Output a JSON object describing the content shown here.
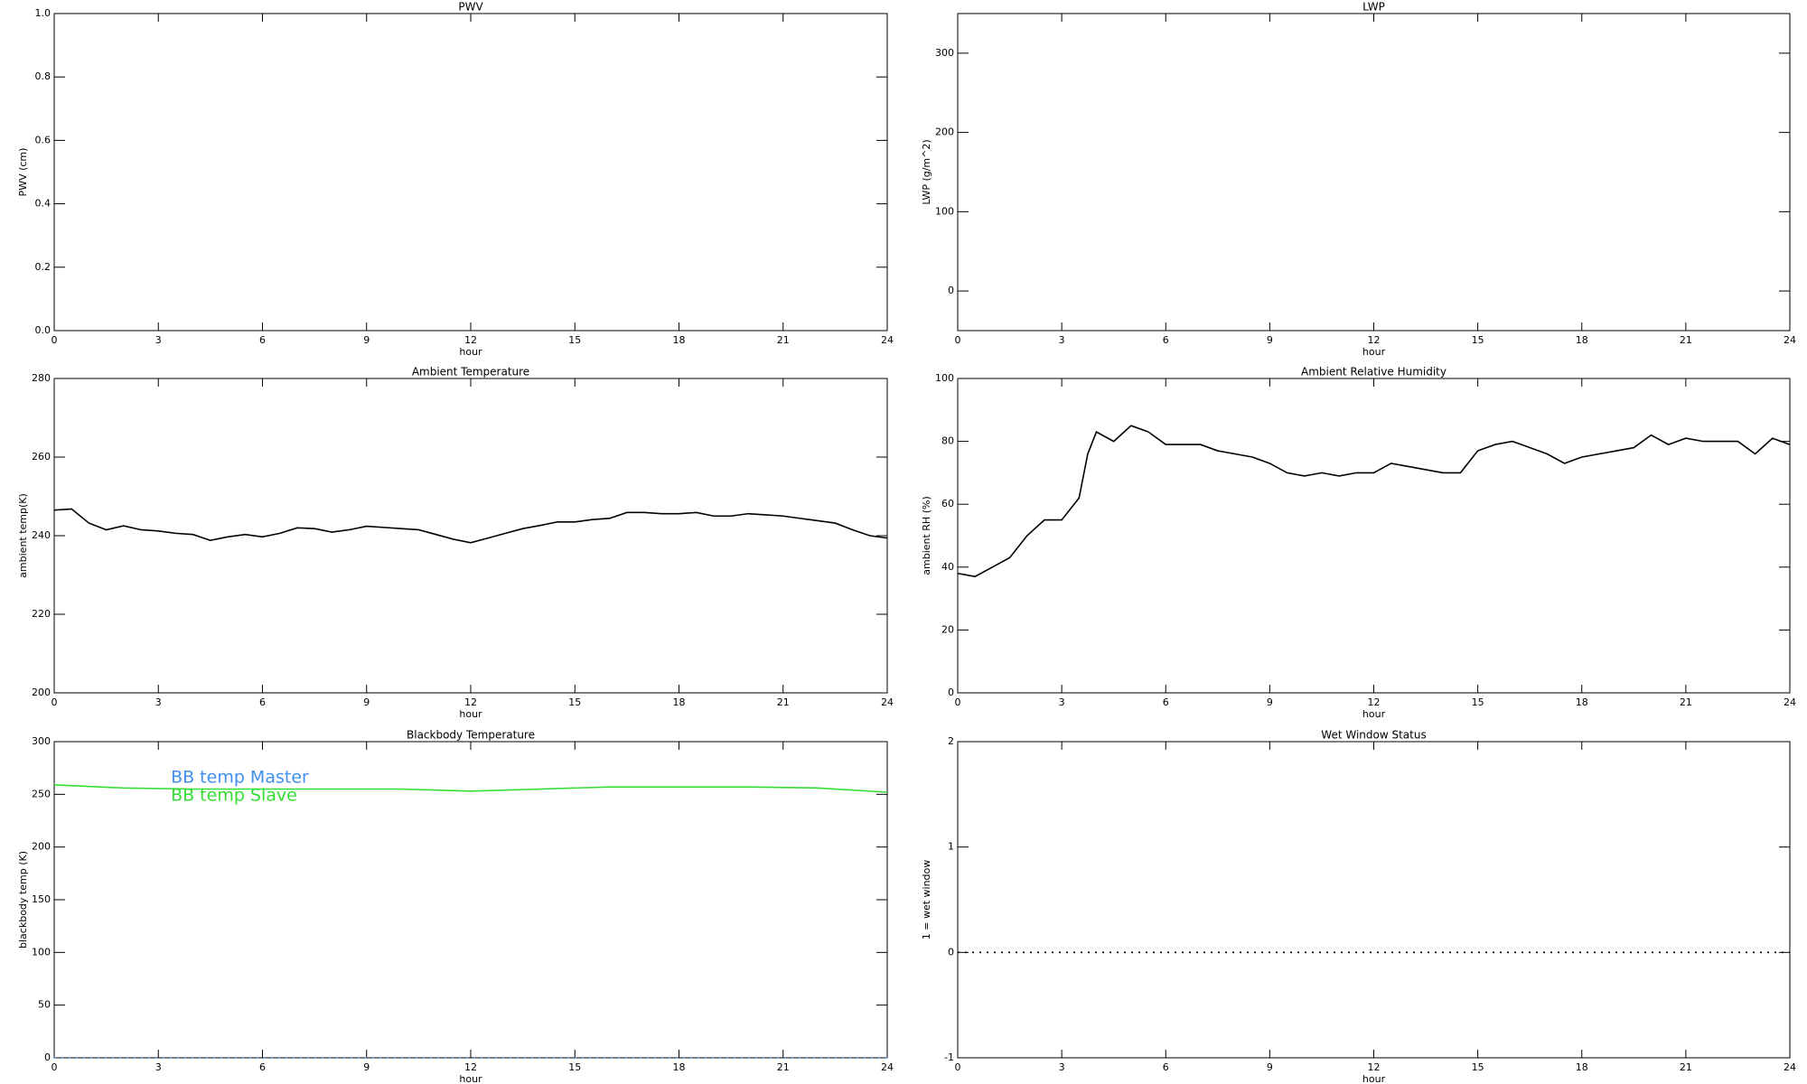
{
  "chart_data": [
    {
      "type": "line",
      "title": "PWV",
      "xlabel": "hour",
      "ylabel": "PWV (cm)",
      "xlim": [
        0,
        24
      ],
      "xticks": [
        0,
        3,
        6,
        9,
        12,
        15,
        18,
        21,
        24
      ],
      "ylim": [
        0,
        1
      ],
      "yticks": [
        {
          "value": 0,
          "label": "0.0"
        },
        0.2,
        0.4,
        0.6,
        0.8,
        {
          "value": 1,
          "label": "1.0"
        }
      ],
      "series": []
    },
    {
      "type": "line",
      "title": "LWP",
      "xlabel": "hour",
      "ylabel": "LWP (g/m^2)",
      "xlim": [
        0,
        24
      ],
      "xticks": [
        0,
        3,
        6,
        9,
        12,
        15,
        18,
        21,
        24
      ],
      "ylim": [
        -50,
        350
      ],
      "yticks": [
        0,
        100,
        200,
        300
      ],
      "series": []
    },
    {
      "type": "line",
      "title": "Ambient Temperature",
      "xlabel": "hour",
      "ylabel": "ambient temp(K)",
      "xlim": [
        0,
        24
      ],
      "xticks": [
        0,
        3,
        6,
        9,
        12,
        15,
        18,
        21,
        24
      ],
      "ylim": [
        200,
        280
      ],
      "yticks": [
        200,
        220,
        240,
        260,
        280
      ],
      "x": [
        0,
        0.5,
        1,
        1.5,
        2,
        2.5,
        3,
        3.5,
        4,
        4.5,
        5,
        5.5,
        6,
        6.5,
        7,
        7.5,
        8,
        8.5,
        9,
        9.5,
        10,
        10.5,
        11,
        11.5,
        12,
        12.5,
        13,
        13.5,
        14,
        14.5,
        15,
        15.5,
        16,
        16.5,
        17,
        17.5,
        18,
        18.5,
        19,
        19.5,
        20,
        20.5,
        21,
        21.5,
        22,
        22.5,
        23,
        23.5,
        24
      ],
      "series": [
        {
          "color": "#000000",
          "values": [
            246.5,
            246.8,
            243.2,
            241.5,
            242.5,
            241.5,
            241.2,
            240.6,
            240.3,
            238.8,
            239.7,
            240.3,
            239.7,
            240.6,
            242,
            241.8,
            240.9,
            241.5,
            242.4,
            242.1,
            241.8,
            241.5,
            240.3,
            239.1,
            238.2,
            239.4,
            240.6,
            241.8,
            242.6,
            243.5,
            243.5,
            244.1,
            244.4,
            245.9,
            245.9,
            245.6,
            245.6,
            245.9,
            245,
            245,
            245.6,
            245.3,
            245,
            244.4,
            243.8,
            243.2,
            241.5,
            240,
            239.4
          ]
        }
      ]
    },
    {
      "type": "line",
      "title": "Ambient Relative Humidity",
      "xlabel": "hour",
      "ylabel": "ambient RH (%)",
      "xlim": [
        0,
        24
      ],
      "xticks": [
        0,
        3,
        6,
        9,
        12,
        15,
        18,
        21,
        24
      ],
      "ylim": [
        0,
        100
      ],
      "yticks": [
        0,
        20,
        40,
        60,
        80,
        100
      ],
      "x": [
        0,
        0.5,
        1,
        1.5,
        2,
        2.5,
        3,
        3.5,
        3.75,
        4,
        4.5,
        5,
        5.5,
        6,
        6.5,
        7,
        7.5,
        8,
        8.5,
        9,
        9.5,
        10,
        10.5,
        11,
        11.5,
        12,
        12.5,
        13,
        13.5,
        14,
        14.5,
        15,
        15.5,
        16,
        16.5,
        17,
        17.5,
        18,
        18.5,
        19,
        19.5,
        20,
        20.5,
        21,
        21.5,
        22,
        22.5,
        23,
        23.5,
        24
      ],
      "series": [
        {
          "color": "#000000",
          "values": [
            38,
            37,
            40,
            43,
            50,
            55,
            55,
            62,
            76,
            83,
            80,
            85,
            83,
            79,
            79,
            79,
            77,
            76,
            75,
            73,
            70,
            69,
            70,
            69,
            70,
            70,
            73,
            72,
            71,
            70,
            70,
            77,
            79,
            80,
            78,
            76,
            73,
            75,
            76,
            77,
            78,
            82,
            79,
            81,
            80,
            80,
            80,
            76,
            81,
            79
          ]
        }
      ]
    },
    {
      "type": "line",
      "title": "Blackbody Temperature",
      "xlabel": "hour",
      "ylabel": "blackbody temp (K)",
      "xlim": [
        0,
        24
      ],
      "xticks": [
        0,
        3,
        6,
        9,
        12,
        15,
        18,
        21,
        24
      ],
      "ylim": [
        0,
        300
      ],
      "yticks": [
        0,
        50,
        100,
        150,
        200,
        250,
        300
      ],
      "x": [
        0,
        2,
        4,
        6,
        8,
        10,
        12,
        14,
        16,
        18,
        20,
        22,
        24
      ],
      "series": [
        {
          "name": "BB temp Master",
          "color": "#3f8fef",
          "values": [
            0,
            0,
            0,
            0,
            0,
            0,
            0,
            0,
            0,
            0,
            0,
            0,
            0
          ]
        },
        {
          "name": "BB temp Slave",
          "color": "#33dd33",
          "values": [
            259,
            256,
            255,
            255,
            255,
            255,
            253,
            255,
            257,
            257,
            257,
            256,
            252
          ]
        }
      ]
    },
    {
      "type": "line",
      "title": "Wet Window Status",
      "xlabel": "hour",
      "ylabel": "1 = wet window",
      "xlim": [
        0,
        24
      ],
      "xticks": [
        0,
        3,
        6,
        9,
        12,
        15,
        18,
        21,
        24
      ],
      "ylim": [
        -1,
        2
      ],
      "yticks": [
        -1,
        0,
        1,
        2
      ],
      "x": [
        0,
        24
      ],
      "series": [
        {
          "color": "#000000",
          "values": [
            0,
            0
          ]
        }
      ]
    }
  ]
}
